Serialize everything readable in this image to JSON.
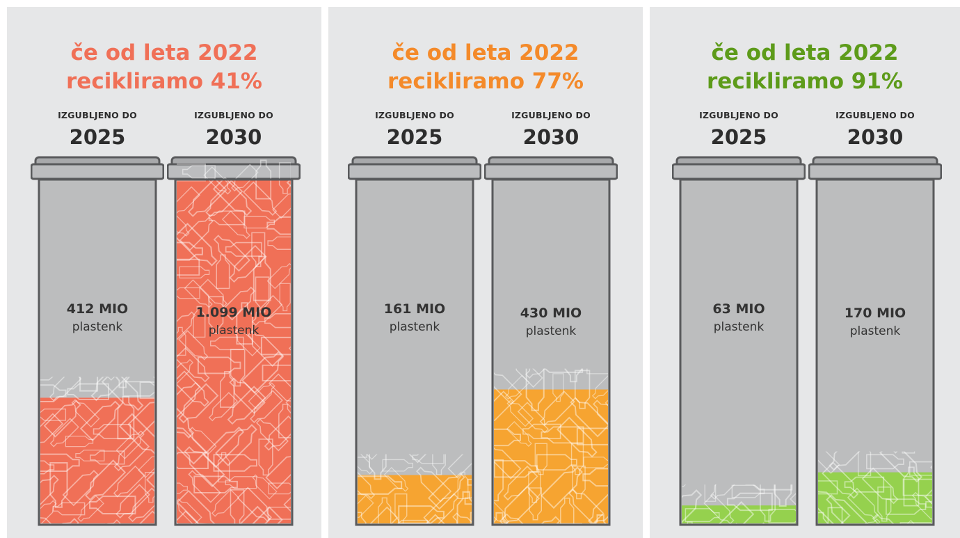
{
  "scenarios": [
    {
      "title_line1": "če od leta 2022",
      "title_line2": "recikliramo 41%",
      "color": "#f07057",
      "bins": [
        {
          "label": "IZGUBLJENO DO",
          "year": "2025",
          "value": "412 MIO",
          "unit": "plastenk",
          "fill_fraction": 0.368
        },
        {
          "label": "IZGUBLJENO DO",
          "year": "2030",
          "value": "1.099 MIO",
          "unit": "plastenk",
          "fill_fraction": 1.0
        }
      ]
    },
    {
      "title_line1": "če od leta 2022",
      "title_line2": "recikliramo 77%",
      "color": "#f6a431",
      "title_color": "#f48a2a",
      "bins": [
        {
          "label": "IZGUBLJENO DO",
          "year": "2025",
          "value": "161 MIO",
          "unit": "plastenk",
          "fill_fraction": 0.144
        },
        {
          "label": "IZGUBLJENO DO",
          "year": "2030",
          "value": "430 MIO",
          "unit": "plastenk",
          "fill_fraction": 0.392
        }
      ]
    },
    {
      "title_line1": "če od leta 2022",
      "title_line2": "recikliramo 91%",
      "color": "#95d14e",
      "title_color": "#5d9b1a",
      "bins": [
        {
          "label": "IZGUBLJENO DO",
          "year": "2025",
          "value": "63 MIO",
          "unit": "plastenk",
          "fill_fraction": 0.056
        },
        {
          "label": "IZGUBLJENO DO",
          "year": "2030",
          "value": "170 MIO",
          "unit": "plastenk",
          "fill_fraction": 0.152
        }
      ]
    }
  ]
}
